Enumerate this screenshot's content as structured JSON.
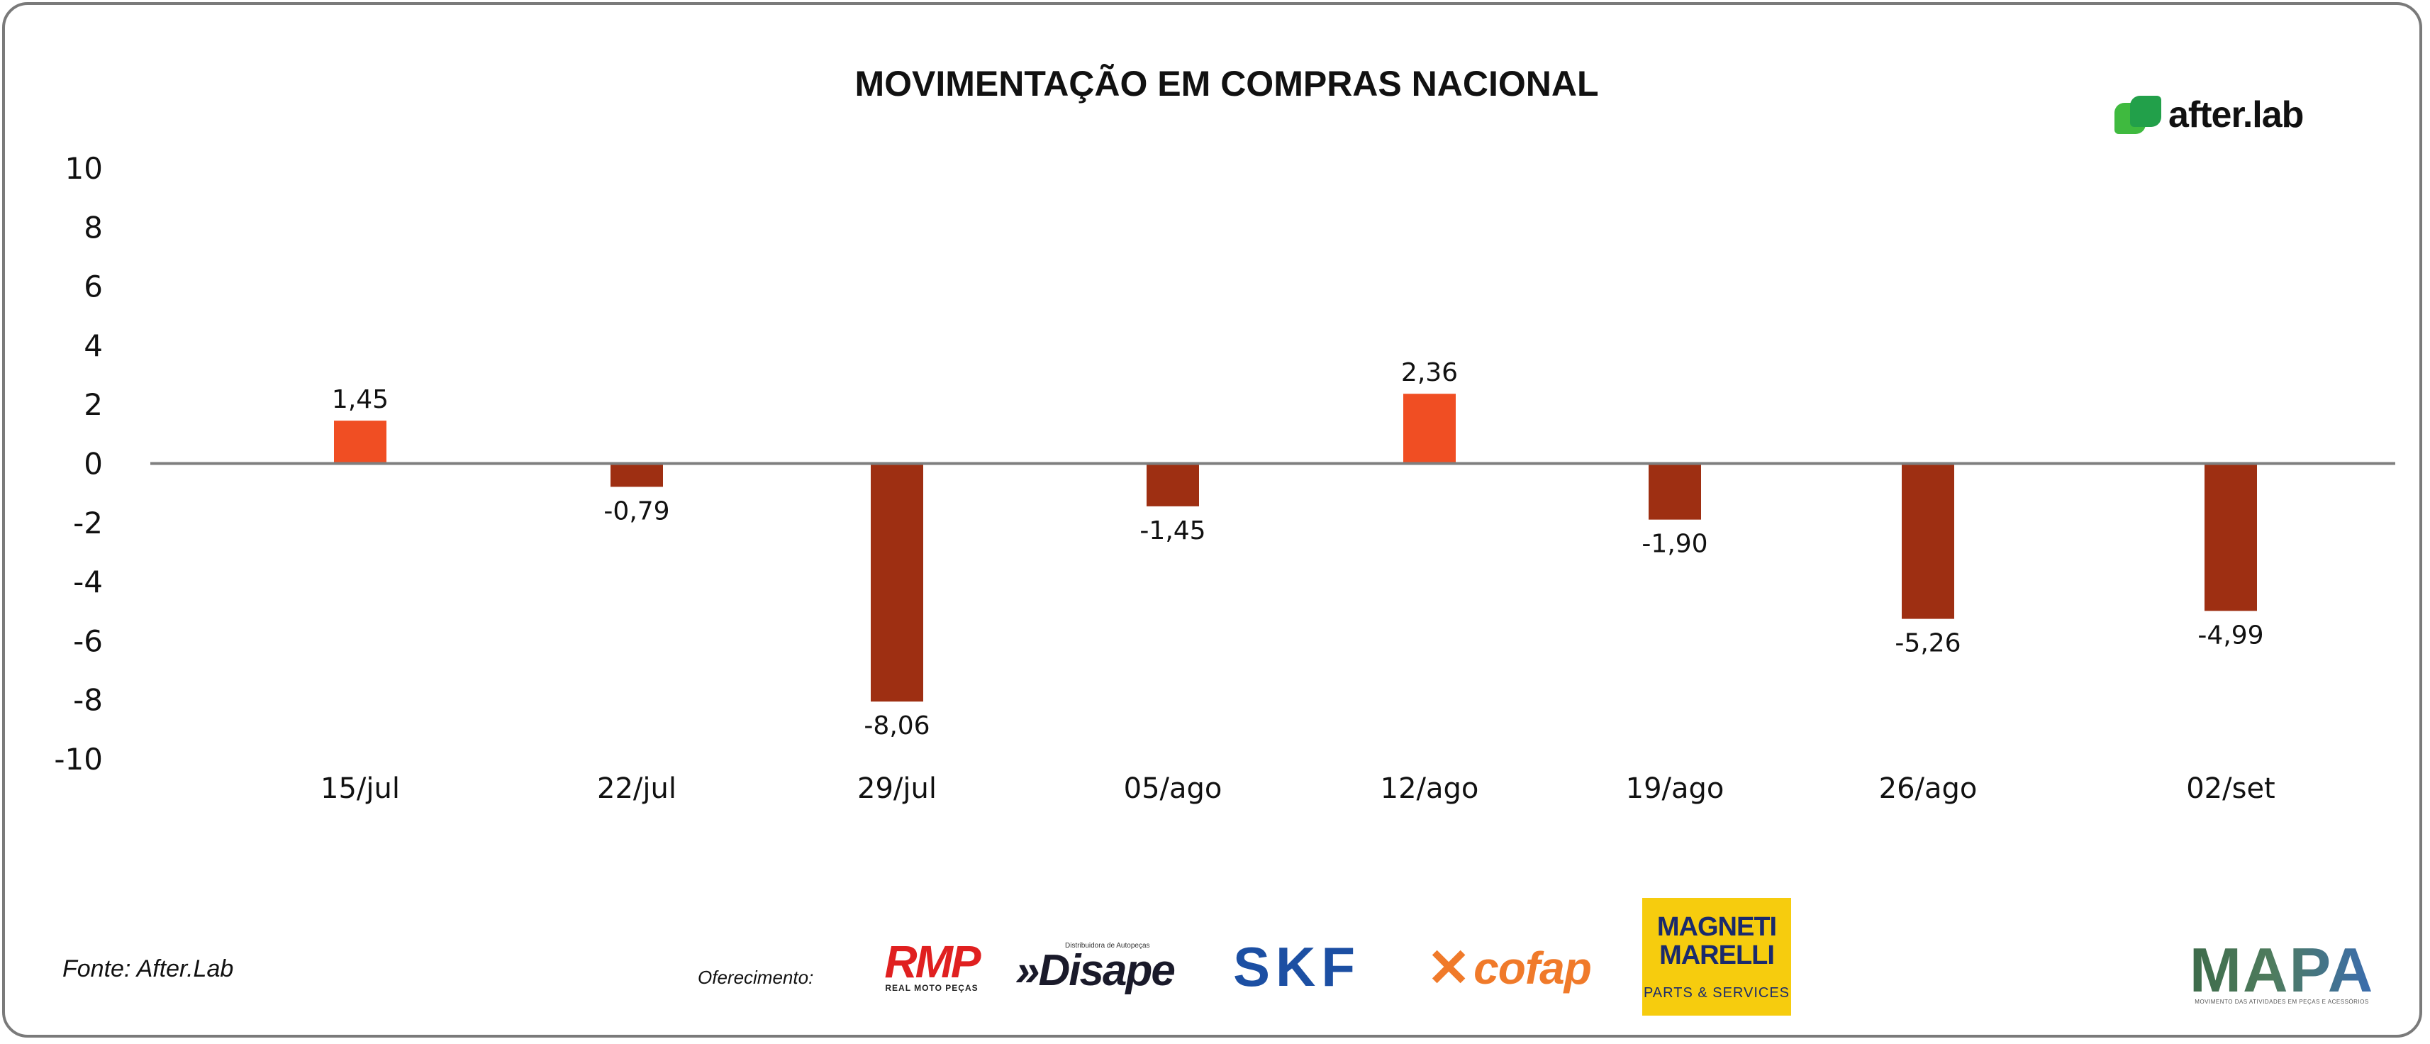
{
  "chart_data": {
    "type": "bar",
    "title": "MOVIMENTAÇÃO EM COMPRAS NACIONAL",
    "categories": [
      "15/jul",
      "22/jul",
      "29/jul",
      "05/ago",
      "12/ago",
      "19/ago",
      "26/ago",
      "02/set"
    ],
    "values": [
      1.45,
      -0.79,
      -8.06,
      -1.45,
      2.36,
      -1.9,
      -5.26,
      -4.99
    ],
    "data_labels": [
      "1,45",
      "-0,79",
      "-8,06",
      "-1,45",
      "2,36",
      "-1,90",
      "-5,26",
      "-4,99"
    ],
    "ylim": [
      -10,
      10
    ],
    "yticks": [
      10,
      8,
      6,
      4,
      2,
      0,
      -2,
      -4,
      -6,
      -8,
      -10
    ],
    "xlabel": "",
    "ylabel": "",
    "grid": false,
    "colors": {
      "positive": "#f04e23",
      "negative": "#9e2f12",
      "axis": "#7f7f7f"
    }
  },
  "footer": {
    "source": "Fonte: After.Lab",
    "offer_label": "Oferecimento:"
  },
  "brand": {
    "name": "after.lab"
  },
  "sponsors": {
    "rmp": {
      "name": "RMP",
      "tagline": "REAL MOTO PEÇAS"
    },
    "disape": {
      "name": "Disape",
      "tagline": "Distribuidora de Autopeças"
    },
    "skf": {
      "name": "SKF"
    },
    "cofap": {
      "name": "cofap"
    },
    "magneti": {
      "line1": "MAGNETI",
      "line2": "MARELLI",
      "line3": "PARTS & SERVICES"
    },
    "mapa": {
      "name": "MAPA",
      "tagline": "MOVIMENTO DAS ATIVIDADES EM PEÇAS E ACESSÓRIOS"
    }
  }
}
